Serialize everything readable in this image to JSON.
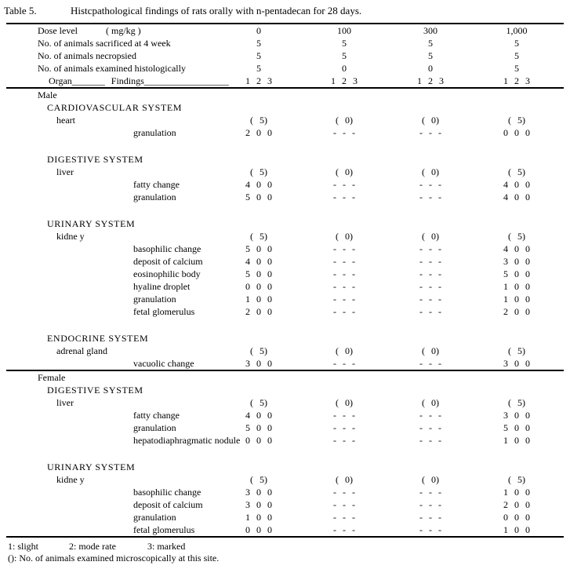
{
  "table_title": {
    "label": "Table 5.",
    "text": "Histcpathological findings of rats orally with n-pentadecan for 28 days."
  },
  "header": {
    "dose_label": "Dose level",
    "dose_unit": "( mg/kg )",
    "doses": [
      "0",
      "100",
      "300",
      "1,000"
    ],
    "info_rows": [
      {
        "label": "No. of animals sacrificed at 4 week",
        "values": [
          "5",
          "5",
          "5",
          "5"
        ]
      },
      {
        "label": "No. of animals necropsied",
        "values": [
          "5",
          "5",
          "5",
          "5"
        ]
      },
      {
        "label": "No. of animals examined histologically",
        "values": [
          "5",
          "0",
          "0",
          "5"
        ]
      }
    ],
    "organ_label": "Organ_______",
    "findings_label": "Findings__________________",
    "grade_row": {
      "values": [
        "1 2 3",
        "1 2 3",
        "1 2 3",
        "1 2 3"
      ]
    }
  },
  "body": {
    "rows": [
      {
        "type": "sex",
        "label": "Male"
      },
      {
        "type": "system",
        "label": "CARDIOVASCULAR SYSTEM"
      },
      {
        "type": "organ",
        "label": "heart",
        "values": [
          "( 5)",
          "( 0)",
          "( 0)",
          "( 5)"
        ]
      },
      {
        "type": "finding",
        "label": "granulation",
        "values": [
          "2 0 0",
          "- - -",
          "- - -",
          "0 0 0"
        ]
      },
      {
        "type": "system",
        "label": "DIGESTIVE SYSTEM"
      },
      {
        "type": "organ",
        "label": "liver",
        "values": [
          "( 5)",
          "( 0)",
          "( 0)",
          "( 5)"
        ]
      },
      {
        "type": "finding",
        "label": "fatty change",
        "values": [
          "4 0 0",
          "- - -",
          "- - -",
          "4 0 0"
        ]
      },
      {
        "type": "finding",
        "label": "granulation",
        "values": [
          "5 0 0",
          "- - -",
          "- - -",
          "4 0 0"
        ]
      },
      {
        "type": "system",
        "label": "URINARY SYSTEM"
      },
      {
        "type": "organ",
        "label": "kidne y",
        "values": [
          "( 5)",
          "( 0)",
          "( 0)",
          "( 5)"
        ]
      },
      {
        "type": "finding",
        "label": "basophilic change",
        "values": [
          "5 0 0",
          "- - -",
          "- - -",
          "4 0 0"
        ]
      },
      {
        "type": "finding",
        "label": "deposit of calcium",
        "values": [
          "4 0 0",
          "- - -",
          "- - -",
          "3 0 0"
        ]
      },
      {
        "type": "finding",
        "label": "eosinophilic body",
        "values": [
          "5 0 0",
          "- - -",
          "- - -",
          "5 0 0"
        ]
      },
      {
        "type": "finding",
        "label": "hyaline droplet",
        "values": [
          "0 0 0",
          "- - -",
          "- - -",
          "1 0 0"
        ]
      },
      {
        "type": "finding",
        "label": "granulation",
        "values": [
          "1 0 0",
          "- - -",
          "- - -",
          "1 0 0"
        ]
      },
      {
        "type": "finding",
        "label": "fetal glomerulus",
        "values": [
          "2 0 0",
          "- - -",
          "- - -",
          "2 0 0"
        ]
      },
      {
        "type": "system",
        "label": "ENDOCRINE SYSTEM"
      },
      {
        "type": "organ",
        "label": "adrenal gland",
        "values": [
          "( 5)",
          "( 0)",
          "( 0)",
          "( 5)"
        ]
      },
      {
        "type": "finding",
        "label": "vacuolic change",
        "values": [
          "3 0 0",
          "- - -",
          "- - -",
          "3 0 0"
        ]
      },
      {
        "type": "sex",
        "label": "Female"
      },
      {
        "type": "system",
        "label": "DIGESTIVE SYSTEM"
      },
      {
        "type": "organ",
        "label": "liver",
        "values": [
          "( 5)",
          "( 0)",
          "( 0)",
          "( 5)"
        ]
      },
      {
        "type": "finding",
        "label": "fatty change",
        "values": [
          "4 0 0",
          "- - -",
          "- - -",
          "3 0 0"
        ]
      },
      {
        "type": "finding",
        "label": "granulation",
        "values": [
          "5 0 0",
          "- - -",
          "- - -",
          "5 0 0"
        ]
      },
      {
        "type": "finding",
        "label": "hepatodiaphragmatic nodule",
        "values": [
          "0 0 0",
          "- - -",
          "- - -",
          "1 0 0"
        ]
      },
      {
        "type": "system",
        "label": "URINARY SYSTEM"
      },
      {
        "type": "organ",
        "label": "kidne y",
        "values": [
          "( 5)",
          "( 0)",
          "( 0)",
          "( 5)"
        ]
      },
      {
        "type": "finding",
        "label": "basophilic change",
        "values": [
          "3 0 0",
          "- - -",
          "- - -",
          "1 0 0"
        ]
      },
      {
        "type": "finding",
        "label": "deposit of calcium",
        "values": [
          "3 0 0",
          "- - -",
          "- - -",
          "2 0 0"
        ]
      },
      {
        "type": "finding",
        "label": "granulation",
        "values": [
          "1 0 0",
          "- - -",
          "- - -",
          "0 0 0"
        ]
      },
      {
        "type": "finding",
        "label": "fetal glomerulus",
        "values": [
          "0 0 0",
          "- - -",
          "- - -",
          "1 0 0"
        ]
      }
    ]
  },
  "footnotes": {
    "grade1": "1: slight",
    "grade2": "2: mode rate",
    "grade3": "3: marked",
    "parentheses_note": "(): No. of animals examined microscopically at this site."
  }
}
